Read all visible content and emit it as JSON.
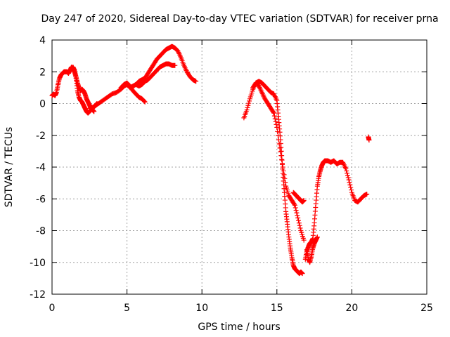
{
  "chart_data": {
    "type": "scatter",
    "title": "Day 247 of 2020, Sidereal Day-to-day VTEC variation (SDTVAR) for receiver prna",
    "xlabel": "GPS time / hours",
    "ylabel": "SDTVAR / TECUs",
    "xlim": [
      0,
      25
    ],
    "ylim": [
      -12,
      4
    ],
    "xticks": [
      0,
      5,
      10,
      15,
      20,
      25
    ],
    "yticks": [
      -12,
      -10,
      -8,
      -6,
      -4,
      -2,
      0,
      2,
      4
    ],
    "grid": true,
    "marker": "+",
    "marker_color": "#ff0000",
    "series": [
      {
        "name": "",
        "segments": [
          {
            "x": [
              0.0,
              0.1,
              0.2,
              0.3,
              0.4,
              0.5,
              0.6,
              0.7,
              0.8,
              0.9,
              1.0,
              1.1,
              1.2,
              1.3,
              1.4,
              1.5,
              1.6,
              1.7,
              1.8,
              1.9,
              2.0,
              2.1,
              2.2,
              2.3,
              2.4,
              2.5,
              2.6,
              2.7,
              2.8
            ],
            "y": [
              0.5,
              0.6,
              0.5,
              0.7,
              1.2,
              1.6,
              1.8,
              1.9,
              2.0,
              2.0,
              2.0,
              1.9,
              2.1,
              2.3,
              2.2,
              2.0,
              1.7,
              1.3,
              1.0,
              0.8,
              0.9,
              0.8,
              0.6,
              0.3,
              0.1,
              -0.1,
              -0.3,
              -0.4,
              -0.5
            ]
          },
          {
            "x": [
              1.4,
              1.5,
              1.6,
              1.7,
              1.8,
              1.9,
              2.0,
              2.1,
              2.2,
              2.3,
              2.4,
              2.5,
              2.6,
              2.7,
              2.8,
              2.9,
              3.0
            ],
            "y": [
              2.3,
              2.1,
              1.6,
              0.8,
              0.4,
              0.2,
              0.1,
              -0.1,
              -0.3,
              -0.5,
              -0.6,
              -0.5,
              -0.4,
              -0.3,
              -0.2,
              -0.1,
              0.0
            ]
          },
          {
            "x": [
              2.5,
              2.8,
              3.1,
              3.4,
              3.7,
              4.0,
              4.3,
              4.6,
              4.8,
              5.0,
              5.2,
              5.4,
              5.6,
              5.8,
              6.0,
              6.2,
              6.4,
              6.6,
              6.8,
              7.0,
              7.2,
              7.4,
              7.6,
              7.8,
              8.0,
              8.2,
              8.4,
              8.6,
              8.8,
              9.0,
              9.2,
              9.4,
              9.6
            ],
            "y": [
              -0.3,
              -0.2,
              0.0,
              0.2,
              0.4,
              0.6,
              0.7,
              0.9,
              1.1,
              1.2,
              1.0,
              1.1,
              1.2,
              1.4,
              1.5,
              1.6,
              1.9,
              2.2,
              2.5,
              2.8,
              3.0,
              3.2,
              3.4,
              3.5,
              3.6,
              3.5,
              3.3,
              2.9,
              2.4,
              2.0,
              1.7,
              1.5,
              1.4
            ]
          },
          {
            "x": [
              4.6,
              4.8,
              5.0,
              5.2,
              5.4,
              5.6,
              5.8,
              6.0,
              6.2
            ],
            "y": [
              1.0,
              1.2,
              1.3,
              1.1,
              0.8,
              0.6,
              0.4,
              0.3,
              0.1
            ]
          },
          {
            "x": [
              5.6,
              5.8,
              6.0,
              6.2,
              6.4,
              6.6,
              6.8,
              7.0,
              7.2,
              7.4,
              7.6,
              7.8,
              8.0,
              8.2
            ],
            "y": [
              1.2,
              1.1,
              1.2,
              1.4,
              1.5,
              1.7,
              1.9,
              2.1,
              2.3,
              2.4,
              2.5,
              2.5,
              2.4,
              2.4
            ]
          },
          {
            "x": [
              12.8,
              13.0,
              13.2,
              13.4,
              13.6,
              13.8,
              14.0,
              14.2,
              14.4,
              14.6,
              14.8,
              15.0,
              15.1,
              15.2,
              15.3,
              15.4,
              15.5,
              15.6,
              15.7,
              15.8,
              15.9,
              16.0,
              16.1,
              16.2,
              16.3,
              16.4,
              16.5,
              16.6,
              16.7
            ],
            "y": [
              -0.9,
              -0.4,
              0.3,
              0.9,
              1.3,
              1.4,
              1.3,
              1.1,
              0.9,
              0.7,
              0.6,
              0.2,
              -0.8,
              -1.8,
              -3.0,
              -4.4,
              -5.6,
              -6.8,
              -7.6,
              -8.4,
              -9.1,
              -9.7,
              -10.2,
              -10.4,
              -10.5,
              -10.6,
              -10.7,
              -10.6,
              -10.7
            ]
          },
          {
            "x": [
              13.4,
              13.6,
              13.8,
              14.0,
              14.2,
              14.4,
              14.6,
              14.8,
              15.0,
              15.2,
              15.4,
              15.6,
              15.8,
              16.0,
              16.2,
              16.4,
              16.6,
              16.8
            ],
            "y": [
              1.0,
              1.3,
              1.1,
              0.7,
              0.3,
              0.0,
              -0.3,
              -0.6,
              -1.5,
              -2.8,
              -4.0,
              -5.2,
              -5.8,
              -6.1,
              -6.4,
              -7.2,
              -8.0,
              -8.6
            ]
          },
          {
            "x": [
              16.1,
              16.2,
              16.3,
              16.4,
              16.5,
              16.6,
              16.7,
              16.8
            ],
            "y": [
              -5.6,
              -5.7,
              -5.8,
              -5.9,
              -6.0,
              -6.1,
              -6.2,
              -6.1
            ]
          },
          {
            "x": [
              16.9,
              17.0,
              17.1,
              17.2,
              17.3,
              17.4,
              17.5,
              17.6,
              17.7,
              17.8,
              17.9,
              18.0,
              18.1,
              18.2,
              18.4,
              18.6,
              18.8,
              19.0,
              19.2,
              19.4,
              19.6,
              19.8,
              20.0,
              20.2,
              20.4,
              20.6,
              20.8,
              21.0
            ],
            "y": [
              -9.8,
              -9.3,
              -9.0,
              -8.8,
              -8.7,
              -8.5,
              -7.5,
              -6.3,
              -5.2,
              -4.6,
              -4.2,
              -3.9,
              -3.7,
              -3.6,
              -3.6,
              -3.7,
              -3.6,
              -3.8,
              -3.7,
              -3.7,
              -4.1,
              -4.8,
              -5.6,
              -6.1,
              -6.2,
              -6.0,
              -5.8,
              -5.7
            ]
          },
          {
            "x": [
              17.0,
              17.1,
              17.2,
              17.3,
              17.4,
              17.5,
              17.6,
              17.7
            ],
            "y": [
              -9.2,
              -9.8,
              -10.0,
              -9.6,
              -9.1,
              -8.8,
              -8.6,
              -8.4
            ]
          },
          {
            "x": [
              21.1,
              21.15
            ],
            "y": [
              -2.1,
              -2.3
            ]
          }
        ]
      }
    ]
  }
}
